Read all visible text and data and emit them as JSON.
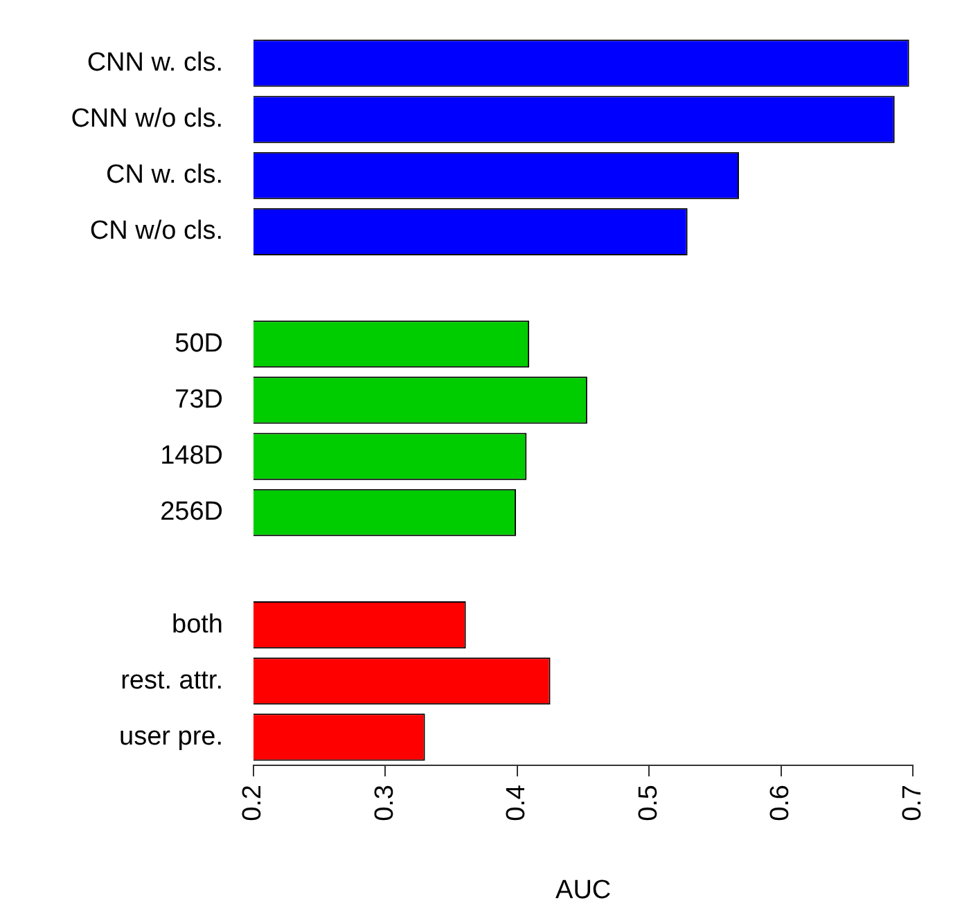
{
  "chart_data": {
    "type": "bar",
    "orientation": "horizontal",
    "xlabel": "AUC",
    "categories": [
      "CNN w. cls.",
      "CNN w/o cls.",
      "CN w. cls.",
      "CN w/o cls.",
      null,
      "50D",
      "73D",
      "148D",
      "256D",
      null,
      "both",
      "rest. attr.",
      "user pre."
    ],
    "values": [
      0.697,
      0.686,
      0.568,
      0.529,
      null,
      0.409,
      0.453,
      0.407,
      0.399,
      null,
      0.361,
      0.425,
      0.33
    ],
    "colors": [
      "#0000ff",
      "#0000ff",
      "#0000ff",
      "#0000ff",
      null,
      "#00cd00",
      "#00cd00",
      "#00cd00",
      "#00cd00",
      null,
      "#ff0000",
      "#ff0000",
      "#ff0000"
    ],
    "xlim": [
      0.2,
      0.7
    ],
    "xticks": [
      0.2,
      0.3,
      0.4,
      0.5,
      0.6,
      0.7
    ],
    "grid": false,
    "legend": false
  }
}
